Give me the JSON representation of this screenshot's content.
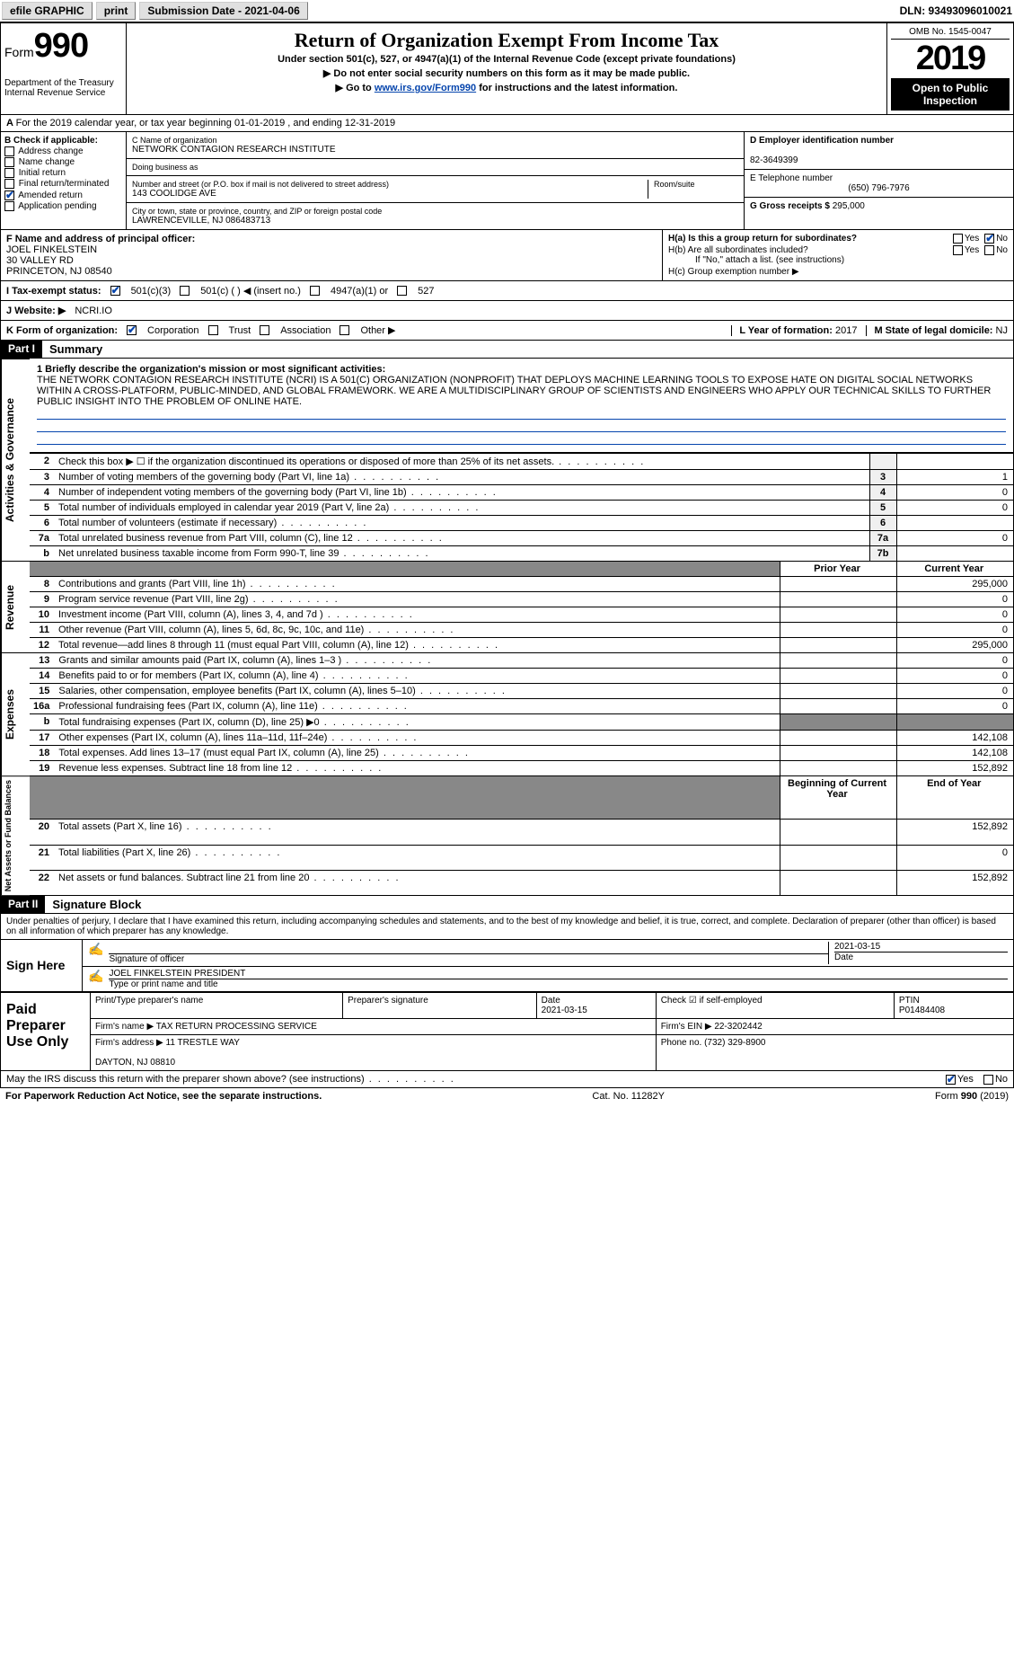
{
  "topbar": {
    "efile": "efile GRAPHIC",
    "print": "print",
    "submission": "Submission Date - 2021-04-06",
    "dln": "DLN: 93493096010021"
  },
  "header": {
    "form_label": "Form",
    "form_number": "990",
    "dept": "Department of the Treasury\nInternal Revenue Service",
    "title": "Return of Organization Exempt From Income Tax",
    "subtitle": "Under section 501(c), 527, or 4947(a)(1) of the Internal Revenue Code (except private foundations)",
    "arrow1": "▶ Do not enter social security numbers on this form as it may be made public.",
    "arrow2_pre": "▶ Go to ",
    "arrow2_link": "www.irs.gov/Form990",
    "arrow2_post": " for instructions and the latest information.",
    "omb": "OMB No. 1545-0047",
    "year": "2019",
    "open": "Open to Public Inspection"
  },
  "rowA": "For the 2019 calendar year, or tax year beginning 01-01-2019     , and ending 12-31-2019",
  "colB": {
    "title": "B Check if applicable:",
    "items": [
      "Address change",
      "Name change",
      "Initial return",
      "Final return/terminated",
      "Amended return",
      "Application pending"
    ],
    "checked_idx": 4
  },
  "colC": {
    "label_name": "C Name of organization",
    "name": "NETWORK CONTAGION RESEARCH INSTITUTE",
    "dba_label": "Doing business as",
    "dba": "",
    "addr_label": "Number and street (or P.O. box if mail is not delivered to street address)",
    "room_label": "Room/suite",
    "addr": "143 COOLIDGE AVE",
    "city_label": "City or town, state or province, country, and ZIP or foreign postal code",
    "city": "LAWRENCEVILLE, NJ  086483713",
    "officer_label": "F Name and address of principal officer:",
    "officer": "JOEL FINKELSTEIN\n30 VALLEY RD\nPRINCETON, NJ  08540"
  },
  "colD": {
    "ein_label": "D Employer identification number",
    "ein": "82-3649399",
    "phone_label": "E Telephone number",
    "phone": "(650) 796-7976",
    "gross_label": "G Gross receipts $",
    "gross": "295,000"
  },
  "rowH": {
    "ha": "H(a)  Is this a group return for subordinates?",
    "hb": "H(b)  Are all subordinates included?",
    "hb_note": "If \"No,\" attach a list. (see instructions)",
    "hc": "H(c)  Group exemption number ▶",
    "yes": "Yes",
    "no": "No"
  },
  "rowI": {
    "label": "I   Tax-exempt status:",
    "opts": [
      "501(c)(3)",
      "501(c) (   ) ◀ (insert no.)",
      "4947(a)(1) or",
      "527"
    ]
  },
  "rowJ": {
    "label": "J   Website: ▶",
    "value": "NCRI.IO"
  },
  "rowK": {
    "label": "K Form of organization:",
    "opts": [
      "Corporation",
      "Trust",
      "Association",
      "Other ▶"
    ]
  },
  "rowL": {
    "label": "L Year of formation:",
    "value": "2017"
  },
  "rowM": {
    "label": "M State of legal domicile:",
    "value": "NJ"
  },
  "part1": {
    "header": "Part I",
    "title": "Summary"
  },
  "part2": {
    "header": "Part II",
    "title": "Signature Block"
  },
  "mission": {
    "label": "1   Briefly describe the organization's mission or most significant activities:",
    "text": "THE NETWORK CONTAGION RESEARCH INSTITUTE (NCRI) IS A 501(C) ORGANIZATION (NONPROFIT) THAT DEPLOYS MACHINE LEARNING TOOLS TO EXPOSE HATE ON DIGITAL SOCIAL NETWORKS WITHIN A CROSS-PLATFORM, PUBLIC-MINDED, AND GLOBAL FRAMEWORK. WE ARE A MULTIDISCIPLINARY GROUP OF SCIENTISTS AND ENGINEERS WHO APPLY OUR TECHNICAL SKILLS TO FURTHER PUBLIC INSIGHT INTO THE PROBLEM OF ONLINE HATE."
  },
  "side_labels": {
    "gov": "Activities & Governance",
    "rev": "Revenue",
    "exp": "Expenses",
    "net": "Net Assets or Fund Balances"
  },
  "lines_gov": [
    {
      "n": "2",
      "t": "Check this box ▶ ☐  if the organization discontinued its operations or disposed of more than 25% of its net assets.",
      "box": "",
      "v": ""
    },
    {
      "n": "3",
      "t": "Number of voting members of the governing body (Part VI, line 1a)",
      "box": "3",
      "v": "1"
    },
    {
      "n": "4",
      "t": "Number of independent voting members of the governing body (Part VI, line 1b)",
      "box": "4",
      "v": "0"
    },
    {
      "n": "5",
      "t": "Total number of individuals employed in calendar year 2019 (Part V, line 2a)",
      "box": "5",
      "v": "0"
    },
    {
      "n": "6",
      "t": "Total number of volunteers (estimate if necessary)",
      "box": "6",
      "v": ""
    },
    {
      "n": "7a",
      "t": "Total unrelated business revenue from Part VIII, column (C), line 12",
      "box": "7a",
      "v": "0"
    },
    {
      "n": "b",
      "t": "Net unrelated business taxable income from Form 990-T, line 39",
      "box": "7b",
      "v": ""
    }
  ],
  "col_headers": {
    "prior": "Prior Year",
    "current": "Current Year",
    "boy": "Beginning of Current Year",
    "eoy": "End of Year"
  },
  "lines_rev": [
    {
      "n": "8",
      "t": "Contributions and grants (Part VIII, line 1h)",
      "p": "",
      "c": "295,000"
    },
    {
      "n": "9",
      "t": "Program service revenue (Part VIII, line 2g)",
      "p": "",
      "c": "0"
    },
    {
      "n": "10",
      "t": "Investment income (Part VIII, column (A), lines 3, 4, and 7d )",
      "p": "",
      "c": "0"
    },
    {
      "n": "11",
      "t": "Other revenue (Part VIII, column (A), lines 5, 6d, 8c, 9c, 10c, and 11e)",
      "p": "",
      "c": "0"
    },
    {
      "n": "12",
      "t": "Total revenue—add lines 8 through 11 (must equal Part VIII, column (A), line 12)",
      "p": "",
      "c": "295,000"
    }
  ],
  "lines_exp": [
    {
      "n": "13",
      "t": "Grants and similar amounts paid (Part IX, column (A), lines 1–3 )",
      "p": "",
      "c": "0"
    },
    {
      "n": "14",
      "t": "Benefits paid to or for members (Part IX, column (A), line 4)",
      "p": "",
      "c": "0"
    },
    {
      "n": "15",
      "t": "Salaries, other compensation, employee benefits (Part IX, column (A), lines 5–10)",
      "p": "",
      "c": "0"
    },
    {
      "n": "16a",
      "t": "Professional fundraising fees (Part IX, column (A), line 11e)",
      "p": "",
      "c": "0"
    },
    {
      "n": "b",
      "t": "Total fundraising expenses (Part IX, column (D), line 25) ▶0",
      "p": "",
      "c": "",
      "shade": true
    },
    {
      "n": "17",
      "t": "Other expenses (Part IX, column (A), lines 11a–11d, 11f–24e)",
      "p": "",
      "c": "142,108"
    },
    {
      "n": "18",
      "t": "Total expenses. Add lines 13–17 (must equal Part IX, column (A), line 25)",
      "p": "",
      "c": "142,108"
    },
    {
      "n": "19",
      "t": "Revenue less expenses. Subtract line 18 from line 12",
      "p": "",
      "c": "152,892"
    }
  ],
  "lines_net": [
    {
      "n": "20",
      "t": "Total assets (Part X, line 16)",
      "p": "",
      "c": "152,892"
    },
    {
      "n": "21",
      "t": "Total liabilities (Part X, line 26)",
      "p": "",
      "c": "0"
    },
    {
      "n": "22",
      "t": "Net assets or fund balances. Subtract line 21 from line 20",
      "p": "",
      "c": "152,892"
    }
  ],
  "sig": {
    "penalty": "Under penalties of perjury, I declare that I have examined this return, including accompanying schedules and statements, and to the best of my knowledge and belief, it is true, correct, and complete. Declaration of preparer (other than officer) is based on all information of which preparer has any knowledge.",
    "sign_here": "Sign Here",
    "sig_label": "Signature of officer",
    "date_label": "Date",
    "date": "2021-03-15",
    "name": "JOEL FINKELSTEIN  PRESIDENT",
    "name_label": "Type or print name and title"
  },
  "prep": {
    "label": "Paid Preparer Use Only",
    "h1": "Print/Type preparer's name",
    "h2": "Preparer's signature",
    "h3": "Date",
    "h3v": "2021-03-15",
    "h4": "Check ☑ if self-employed",
    "h5": "PTIN",
    "h5v": "P01484408",
    "firm_name_label": "Firm's name    ▶",
    "firm_name": "TAX RETURN PROCESSING SERVICE",
    "firm_ein_label": "Firm's EIN ▶",
    "firm_ein": "22-3202442",
    "firm_addr_label": "Firm's address ▶",
    "firm_addr": "11 TRESTLE WAY\n\nDAYTON, NJ  08810",
    "phone_label": "Phone no.",
    "phone": "(732) 329-8900"
  },
  "discuss": {
    "text": "May the IRS discuss this return with the preparer shown above? (see instructions)",
    "yes": "Yes",
    "no": "No"
  },
  "footer": {
    "pra": "For Paperwork Reduction Act Notice, see the separate instructions.",
    "cat": "Cat. No. 11282Y",
    "form": "Form 990 (2019)"
  }
}
